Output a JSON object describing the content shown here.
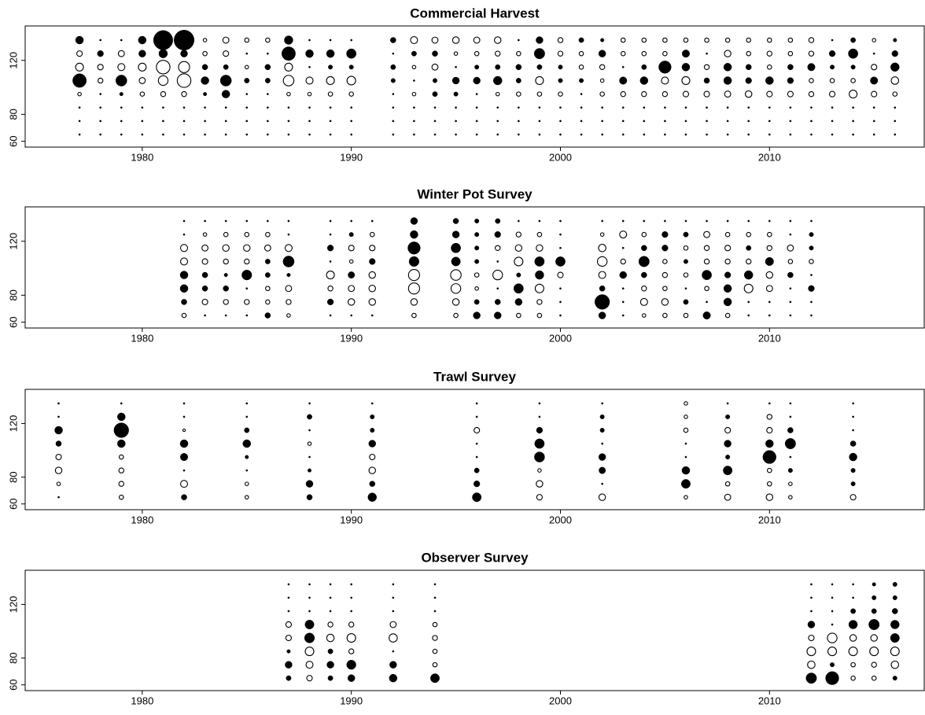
{
  "chart_data": [
    {
      "type": "bubble",
      "title": "Commercial Harvest",
      "color": "#000000",
      "x": [
        1977,
        1978,
        1979,
        1980,
        1981,
        1982,
        1983,
        1984,
        1985,
        1986,
        1987,
        1988,
        1989,
        1990,
        1992,
        1993,
        1994,
        1995,
        1996,
        1997,
        1998,
        1999,
        2000,
        2001,
        2002,
        2003,
        2004,
        2005,
        2006,
        2007,
        2008,
        2009,
        2010,
        2011,
        2012,
        2013,
        2014,
        2015,
        2016
      ],
      "y": [
        65,
        75,
        85,
        95,
        105,
        115,
        125,
        135
      ],
      "values": [
        [
          0.05,
          0.05,
          0.05,
          -0.2,
          3,
          -1,
          -0.5,
          1
        ],
        [
          0.05,
          0.05,
          0.05,
          0.05,
          -0.4,
          -0.5,
          0.6,
          0.05
        ],
        [
          0.05,
          0.05,
          0.05,
          0.2,
          2,
          -0.8,
          -0.6,
          0.05
        ],
        [
          0.05,
          0.05,
          0.05,
          -0.3,
          -0.6,
          -1,
          0.8,
          1
        ],
        [
          0.05,
          0.05,
          0.05,
          -0.4,
          -1.5,
          -3,
          1.2,
          6
        ],
        [
          0.05,
          0.05,
          0.05,
          -0.4,
          -3,
          -2,
          0.8,
          6.5
        ],
        [
          0.05,
          0.05,
          0.05,
          0.2,
          1,
          0.5,
          -0.3,
          -0.2
        ],
        [
          0.05,
          0.05,
          0.05,
          1,
          2,
          0.4,
          -0.5,
          -0.6
        ],
        [
          0.05,
          0.05,
          0.05,
          0.05,
          0.4,
          -0.2,
          0.05,
          -0.3
        ],
        [
          0.05,
          0.05,
          0.05,
          0.05,
          0.4,
          0.5,
          0.05,
          -0.3
        ],
        [
          0.05,
          0.05,
          0.05,
          -0.2,
          -1.8,
          -1,
          3,
          1.2
        ],
        [
          0.05,
          0.05,
          0.05,
          -0.2,
          -0.8,
          0.05,
          1,
          0.05
        ],
        [
          0.05,
          0.05,
          0.05,
          -0.3,
          -1,
          0.3,
          1,
          0.05
        ],
        [
          0.05,
          0.05,
          0.05,
          -0.3,
          -1.2,
          0.3,
          1.5,
          0.05
        ],
        [
          0.05,
          0.05,
          0.05,
          0.05,
          0.3,
          0.4,
          0.05,
          0.5
        ],
        [
          0.05,
          0.05,
          0.05,
          -0.2,
          0.05,
          -0.2,
          0.4,
          -0.8
        ],
        [
          0.05,
          0.05,
          0.05,
          0.4,
          0.3,
          -0.6,
          0.5,
          -0.6
        ],
        [
          0.05,
          0.05,
          0.05,
          0.3,
          0.8,
          0.05,
          -0.2,
          -0.7
        ],
        [
          0.05,
          0.05,
          0.05,
          0.05,
          0.8,
          0.3,
          -0.3,
          -0.6
        ],
        [
          0.05,
          0.05,
          0.05,
          -0.2,
          1.2,
          0.4,
          -0.4,
          -0.7
        ],
        [
          0.05,
          0.05,
          0.05,
          -0.3,
          0.4,
          0.5,
          -0.3,
          0.05
        ],
        [
          0.05,
          0.05,
          0.05,
          -0.3,
          -1,
          0.4,
          1.8,
          0.8
        ],
        [
          0.05,
          0.05,
          0.05,
          -0.3,
          0.3,
          0.3,
          -0.4,
          -0.4
        ],
        [
          0.05,
          0.05,
          0.05,
          0.05,
          0.3,
          -0.3,
          -0.3,
          0.4
        ],
        [
          0.05,
          0.05,
          0.05,
          -0.3,
          -0.2,
          -0.4,
          0.8,
          0.2
        ],
        [
          0.05,
          0.05,
          0.05,
          -0.4,
          0.9,
          0.05,
          -0.3,
          -0.3
        ],
        [
          0.05,
          0.05,
          0.05,
          -0.4,
          1,
          0.4,
          -0.3,
          -0.3
        ],
        [
          0.05,
          0.05,
          0.05,
          -0.4,
          -0.8,
          2.5,
          -0.3,
          -0.3
        ],
        [
          0.05,
          0.05,
          0.05,
          -0.5,
          -1,
          1,
          0.9,
          -0.3
        ],
        [
          0.05,
          0.05,
          0.05,
          -0.5,
          0.5,
          -0.4,
          0.05,
          -0.3
        ],
        [
          0.05,
          0.05,
          0.05,
          -0.6,
          1,
          1,
          -0.7,
          -0.3
        ],
        [
          0.05,
          0.05,
          0.05,
          -0.7,
          0.6,
          0.5,
          -0.3,
          -0.3
        ],
        [
          0.05,
          0.05,
          0.05,
          -0.5,
          1,
          -0.3,
          -0.4,
          -0.3
        ],
        [
          0.05,
          0.05,
          0.05,
          -0.5,
          0.6,
          0.5,
          -0.3,
          -0.3
        ],
        [
          0.05,
          0.05,
          0.05,
          -0.4,
          -0.3,
          0.9,
          -0.4,
          -0.4
        ],
        [
          0.05,
          0.05,
          0.05,
          -0.5,
          -0.3,
          0.3,
          0.6,
          0.05
        ],
        [
          0.05,
          0.05,
          0.05,
          -1,
          -0.3,
          0.3,
          1.5,
          0.4
        ],
        [
          0.05,
          0.05,
          0.05,
          -0.5,
          0.9,
          -0.5,
          0.05,
          -0.2
        ],
        [
          0.05,
          0.05,
          0.05,
          -0.3,
          -0.9,
          1.2,
          0.6,
          0.2
        ]
      ],
      "xlim": [
        1974.4,
        2017.4
      ],
      "xticks": [
        1980,
        1990,
        2000,
        2010
      ],
      "ylim": [
        55.7,
        145.5
      ],
      "yticks": [
        60,
        80,
        120
      ]
    },
    {
      "type": "bubble",
      "title": "Winter Pot Survey",
      "color": "#000000",
      "x": [
        1982,
        1983,
        1984,
        1985,
        1986,
        1987,
        1989,
        1990,
        1991,
        1993,
        1995,
        1996,
        1997,
        1998,
        1999,
        2000,
        2002,
        2003,
        2004,
        2005,
        2006,
        2007,
        2008,
        2009,
        2010,
        2011,
        2012
      ],
      "y": [
        65,
        75,
        85,
        95,
        105,
        115,
        125,
        135
      ],
      "values": [
        [
          -0.3,
          0.5,
          1,
          1,
          -0.8,
          -0.8,
          0.05,
          0.05
        ],
        [
          0.05,
          -0.5,
          0.5,
          0.5,
          -0.5,
          -0.6,
          -0.2,
          0.05
        ],
        [
          0.05,
          -0.4,
          0.5,
          0.2,
          -0.4,
          -0.7,
          -0.3,
          0.05
        ],
        [
          0.05,
          -0.4,
          0.05,
          1.6,
          -0.4,
          -0.7,
          -0.3,
          0.05
        ],
        [
          0.5,
          -0.3,
          -0.3,
          0.4,
          0.4,
          -0.6,
          -0.3,
          0.05
        ],
        [
          -0.2,
          -0.4,
          -0.6,
          0.2,
          2,
          -0.8,
          0.05,
          0.05
        ],
        [
          0.05,
          0.6,
          -0.4,
          -1,
          0.05,
          0.6,
          0.05,
          0.05
        ],
        [
          0.05,
          -0.7,
          -0.6,
          0.7,
          -0.2,
          -0.5,
          0.3,
          0.05
        ],
        [
          0.05,
          -0.7,
          -0.7,
          -0.7,
          0.6,
          -0.5,
          -0.3,
          0.05
        ],
        [
          -0.3,
          -0.7,
          -2,
          -2,
          1.6,
          2.5,
          1,
          0.8
        ],
        [
          -0.3,
          -0.7,
          -1.5,
          -1.8,
          1.3,
          1.5,
          0.8,
          0.5
        ],
        [
          0.8,
          0.4,
          -0.2,
          -0.3,
          0.3,
          0.3,
          0.3,
          0.3
        ],
        [
          0.8,
          0.5,
          0.05,
          -1.5,
          0.05,
          -0.4,
          0.6,
          0.4
        ],
        [
          -0.3,
          0.8,
          1.5,
          0.3,
          -1.2,
          -0.7,
          -0.4,
          0.05
        ],
        [
          -0.3,
          -0.4,
          -1.2,
          1.2,
          1.5,
          -0.7,
          -0.3,
          0.05
        ],
        [
          0.05,
          0.05,
          0.05,
          -0.5,
          1.5,
          0.05,
          0.05,
          0.05
        ],
        [
          0.8,
          3.5,
          0.5,
          -0.8,
          -1.5,
          -0.9,
          -0.2,
          0.05
        ],
        [
          0.05,
          0.05,
          0.05,
          0.8,
          -0.4,
          0.05,
          -0.8,
          0.05
        ],
        [
          -0.2,
          -0.8,
          -0.4,
          0.5,
          1.8,
          0.5,
          -0.3,
          0.05
        ],
        [
          -0.3,
          -0.7,
          -0.3,
          -0.4,
          -0.3,
          0.6,
          0.6,
          0.05
        ],
        [
          -0.3,
          0.4,
          0.05,
          -0.3,
          0.3,
          -0.3,
          0.4,
          0.05
        ],
        [
          0.9,
          0.05,
          -0.3,
          1.5,
          -0.4,
          -0.4,
          -0.6,
          0.05
        ],
        [
          -0.3,
          1,
          1,
          0.6,
          -0.4,
          -0.5,
          -0.3,
          0.05
        ],
        [
          0.05,
          0.05,
          -1.2,
          1.2,
          -0.4,
          0.4,
          -0.3,
          0.05
        ],
        [
          0.05,
          0.05,
          -0.6,
          -0.7,
          1.1,
          -0.4,
          -0.3,
          0.05
        ],
        [
          0.05,
          0.05,
          0.05,
          0.5,
          -0.3,
          -0.6,
          0.05,
          0.05
        ],
        [
          0.05,
          0.05,
          0.6,
          0.05,
          -0.3,
          0.3,
          0.3,
          0.05
        ]
      ],
      "xlim": [
        1974.4,
        2017.4
      ],
      "xticks": [
        1980,
        1990,
        2000,
        2010
      ],
      "ylim": [
        55.7,
        145.5
      ],
      "yticks": [
        60,
        80,
        120
      ]
    },
    {
      "type": "bubble",
      "title": "Trawl Survey",
      "color": "#000000",
      "x": [
        1976,
        1979,
        1982,
        1985,
        1988,
        1991,
        1996,
        1999,
        2002,
        2006,
        2008,
        2010,
        2011,
        2014
      ],
      "y": [
        65,
        75,
        85,
        95,
        105,
        115,
        125,
        135
      ],
      "values": [
        [
          0.05,
          -0.2,
          -0.7,
          -0.5,
          0.5,
          1,
          0.05,
          0.05
        ],
        [
          -0.3,
          -0.4,
          -0.4,
          -0.3,
          1,
          3.5,
          1,
          0.05
        ],
        [
          0.5,
          -0.8,
          0.05,
          0.9,
          1,
          -0.1,
          0.05,
          0.05
        ],
        [
          -0.2,
          -0.2,
          0.05,
          0.2,
          1,
          0.4,
          0.05,
          0.05
        ],
        [
          0.5,
          0.8,
          0.2,
          0.05,
          -0.2,
          0.05,
          0.4,
          0.05
        ],
        [
          1.2,
          0.5,
          -0.7,
          -0.5,
          0.8,
          0.3,
          0.3,
          0.05
        ],
        [
          1.3,
          0.6,
          0.4,
          0.05,
          0.05,
          -0.5,
          0.05,
          0.05
        ],
        [
          -0.5,
          -0.7,
          -0.2,
          1.7,
          1.5,
          0.6,
          0.05,
          0.05
        ],
        [
          -0.7,
          0.05,
          0.7,
          0.8,
          0.05,
          0.3,
          0.3,
          0.05
        ],
        [
          -0.2,
          1.3,
          1,
          0.05,
          0.05,
          -0.3,
          -0.2,
          -0.2
        ],
        [
          -0.6,
          -0.3,
          1.3,
          0.3,
          0.8,
          -0.5,
          0.3,
          0.05
        ],
        [
          -0.7,
          -0.3,
          -0.3,
          2.8,
          1,
          -0.5,
          -0.4,
          0.05
        ],
        [
          -0.2,
          -0.2,
          0.3,
          0.05,
          1.8,
          0.5,
          0.05,
          0.05
        ],
        [
          -0.5,
          0.3,
          0.3,
          1,
          0.5,
          0.05,
          0.05,
          0.05
        ]
      ],
      "xlim": [
        1974.4,
        2017.4
      ],
      "xticks": [
        1980,
        1990,
        2000,
        2010
      ],
      "ylim": [
        55.7,
        145.5
      ],
      "yticks": [
        60,
        80,
        120
      ]
    },
    {
      "type": "bubble",
      "title": "Observer Survey",
      "color": "#000000",
      "x": [
        1987,
        1988,
        1989,
        1990,
        1992,
        1994,
        2012,
        2013,
        2014,
        2015,
        2016
      ],
      "y": [
        65,
        75,
        85,
        95,
        105,
        115,
        125,
        135
      ],
      "values": [
        [
          0.4,
          0.8,
          0.2,
          -0.5,
          -0.5,
          0.05,
          0.05,
          0.05
        ],
        [
          -0.5,
          -0.8,
          -1.2,
          1.6,
          1.3,
          0.05,
          0.05,
          0.05
        ],
        [
          0.4,
          0.8,
          0.4,
          -0.9,
          -0.4,
          0.05,
          0.05,
          0.05
        ],
        [
          0.8,
          1.4,
          -0.4,
          -1.2,
          -0.4,
          0.05,
          0.05,
          0.05
        ],
        [
          1,
          0.8,
          0.05,
          -1.1,
          -0.6,
          0.05,
          0.05,
          0.05
        ],
        [
          1.3,
          -0.3,
          -0.3,
          -0.4,
          -0.3,
          0.05,
          0.05,
          0.05
        ],
        [
          1.8,
          -0.9,
          -1.2,
          -0.5,
          0.8,
          0.05,
          0.05,
          0.05
        ],
        [
          2.8,
          0.3,
          -1.2,
          -1.5,
          0.05,
          0.05,
          0.05,
          0.05
        ],
        [
          -0.3,
          -0.3,
          -1.2,
          -0.7,
          1.2,
          0.4,
          0.05,
          0.05
        ],
        [
          -0.3,
          -0.4,
          -1.2,
          -0.7,
          1.8,
          0.4,
          0.3,
          0.2
        ],
        [
          0.3,
          -0.9,
          -1.2,
          1.3,
          1.2,
          0.5,
          0.3,
          0.3
        ]
      ],
      "xlim": [
        1974.4,
        2017.4
      ],
      "xticks": [
        1980,
        1990,
        2000,
        2010
      ],
      "ylim": [
        55.7,
        145.5
      ],
      "yticks": [
        60,
        80,
        120
      ]
    }
  ]
}
